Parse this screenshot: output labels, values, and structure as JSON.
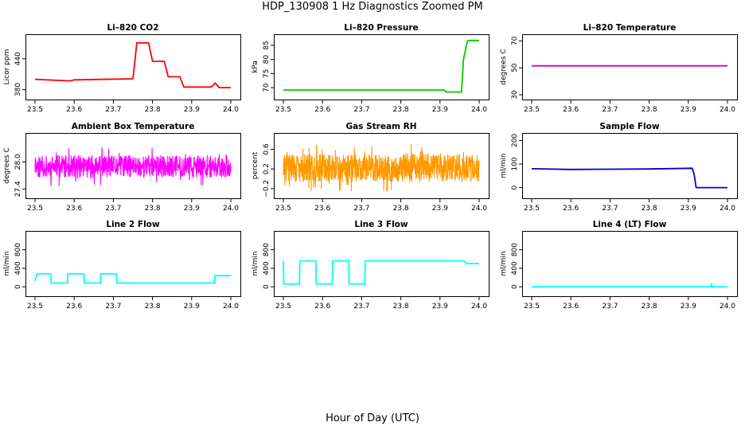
{
  "figure": {
    "title": "HDP_130908  1 Hz Diagnostics Zoomed PM",
    "xlabel": "Hour of Day (UTC)"
  },
  "chart_data": [
    {
      "type": "line",
      "title": "Li–820 CO2",
      "ylabel": "Licor ppm",
      "xlabel": "",
      "xlim": [
        23.5,
        24.0
      ],
      "ylim": [
        370,
        480
      ],
      "xticks": [
        "23.5",
        "23.6",
        "23.7",
        "23.8",
        "23.9",
        "24.0"
      ],
      "yticks": [
        "380",
        "440"
      ],
      "yticks_values": [
        380,
        440
      ],
      "series": [
        {
          "color": "#ff0000",
          "x": [
            23.5,
            23.59,
            23.6,
            23.75,
            23.76,
            23.79,
            23.8,
            23.83,
            23.84,
            23.87,
            23.88,
            23.95,
            23.96,
            23.97,
            24.0
          ],
          "y": [
            400,
            397,
            399,
            401,
            471,
            471,
            435,
            435,
            405,
            405,
            385,
            385,
            393,
            384,
            384
          ]
        }
      ]
    },
    {
      "type": "line",
      "title": "Li–820 Pressure",
      "ylabel": "kPa",
      "xlabel": "",
      "xlim": [
        23.5,
        24.0
      ],
      "ylim": [
        67.5,
        87.5
      ],
      "xticks": [
        "23.5",
        "23.6",
        "23.7",
        "23.8",
        "23.9",
        "24.0"
      ],
      "yticks": [
        "70",
        "75",
        "80",
        "85"
      ],
      "yticks_values": [
        70,
        75,
        80,
        85
      ],
      "series": [
        {
          "color": "#00cc00",
          "x": [
            23.5,
            23.91,
            23.915,
            23.955,
            23.96,
            23.97,
            23.975,
            24.0
          ],
          "y": [
            69.2,
            69.2,
            68.5,
            68.5,
            80,
            86.5,
            86.7,
            86.7
          ]
        }
      ]
    },
    {
      "type": "line",
      "title": "Li–820 Temperature",
      "ylabel": "degrees C",
      "xlabel": "",
      "xlim": [
        23.5,
        24.0
      ],
      "ylim": [
        30,
        72
      ],
      "xticks": [
        "23.5",
        "23.6",
        "23.7",
        "23.8",
        "23.9",
        "24.0"
      ],
      "yticks": [
        "30",
        "50",
        "70"
      ],
      "yticks_values": [
        30,
        50,
        70
      ],
      "series": [
        {
          "color": "#cc00cc",
          "x": [
            23.5,
            24.0
          ],
          "y": [
            51.5,
            51.5
          ]
        }
      ]
    },
    {
      "type": "line",
      "title": "Ambient Box Temperature",
      "ylabel": "degrees C",
      "xlabel": "",
      "xlim": [
        23.5,
        24.0
      ],
      "ylim": [
        27.3,
        28.55
      ],
      "xticks": [
        "23.5",
        "23.6",
        "23.7",
        "23.8",
        "23.9",
        "24.0"
      ],
      "yticks": [
        "27.4",
        "28.0"
      ],
      "yticks_values": [
        27.4,
        28.0
      ],
      "series": [
        {
          "color": "#ff00ff",
          "noise": {
            "base": 27.9,
            "amp": 0.24,
            "min": 27.35,
            "max": 28.45,
            "n": 700,
            "seed": 11
          }
        }
      ]
    },
    {
      "type": "line",
      "title": "Gas Stream RH",
      "ylabel": "percent",
      "xlabel": "",
      "xlim": [
        23.5,
        24.0
      ],
      "ylim": [
        -0.3,
        0.85
      ],
      "xticks": [
        "23.5",
        "23.6",
        "23.7",
        "23.8",
        "23.9",
        "24.0"
      ],
      "yticks": [
        "−0.2",
        "0.2",
        "0.6"
      ],
      "yticks_values": [
        -0.2,
        0.2,
        0.6
      ],
      "series": [
        {
          "color": "#ff9900",
          "noise": {
            "base": 0.22,
            "amp": 0.28,
            "min": -0.25,
            "max": 0.7,
            "n": 900,
            "seed": 29
          }
        }
      ]
    },
    {
      "type": "line",
      "title": "Sample Flow",
      "ylabel": "ml/min",
      "xlabel": "",
      "xlim": [
        23.5,
        24.0
      ],
      "ylim": [
        -25,
        215
      ],
      "xticks": [
        "23.5",
        "23.6",
        "23.7",
        "23.8",
        "23.9",
        "24.0"
      ],
      "yticks": [
        "0",
        "100",
        "200"
      ],
      "yticks_values": [
        0,
        100,
        200
      ],
      "series": [
        {
          "color": "#0000cc",
          "x": [
            23.5,
            23.6,
            23.7,
            23.8,
            23.91,
            23.915,
            23.92,
            24.0
          ],
          "y": [
            80,
            77,
            78,
            79,
            82,
            55,
            0,
            0
          ]
        }
      ]
    },
    {
      "type": "line",
      "title": "Line 2 Flow",
      "ylabel": "ml/min",
      "xlabel": "",
      "xlim": [
        23.5,
        24.0
      ],
      "ylim": [
        -100,
        1120
      ],
      "xticks": [
        "23.5",
        "23.6",
        "23.7",
        "23.8",
        "23.9",
        "24.0"
      ],
      "yticks": [
        "0",
        "400",
        "800"
      ],
      "yticks_values": [
        0,
        400,
        800
      ],
      "series": [
        {
          "color": "#00ffff",
          "x": [
            23.5,
            23.505,
            23.54,
            23.541,
            23.583,
            23.584,
            23.625,
            23.626,
            23.667,
            23.668,
            23.708,
            23.709,
            23.958,
            23.959,
            24.0
          ],
          "y": [
            120,
            280,
            280,
            80,
            80,
            280,
            280,
            80,
            80,
            280,
            280,
            80,
            80,
            240,
            240
          ]
        }
      ]
    },
    {
      "type": "line",
      "title": "Line 3 Flow",
      "ylabel": "ml/min",
      "xlabel": "",
      "xlim": [
        23.5,
        24.0
      ],
      "ylim": [
        -100,
        1120
      ],
      "xticks": [
        "23.5",
        "23.6",
        "23.7",
        "23.8",
        "23.9",
        "24.0"
      ],
      "yticks": [
        "0",
        "400",
        "800"
      ],
      "yticks_values": [
        0,
        400,
        800
      ],
      "series": [
        {
          "color": "#00ffff",
          "x": [
            23.5,
            23.501,
            23.541,
            23.542,
            23.583,
            23.584,
            23.625,
            23.626,
            23.667,
            23.668,
            23.708,
            23.709,
            23.96,
            23.97,
            24.0
          ],
          "y": [
            560,
            60,
            60,
            560,
            560,
            60,
            60,
            560,
            560,
            60,
            60,
            560,
            560,
            500,
            500
          ]
        }
      ]
    },
    {
      "type": "line",
      "title": "Line 4 (LT) Flow",
      "ylabel": "ml/min",
      "xlabel": "",
      "xlim": [
        23.5,
        24.0
      ],
      "ylim": [
        -100,
        1120
      ],
      "xticks": [
        "23.5",
        "23.6",
        "23.7",
        "23.8",
        "23.9",
        "24.0"
      ],
      "yticks": [
        "0",
        "400",
        "800"
      ],
      "yticks_values": [
        0,
        400,
        800
      ],
      "series": [
        {
          "color": "#00ffff",
          "x": [
            23.5,
            23.958,
            23.959,
            23.96,
            23.961,
            24.0
          ],
          "y": [
            0,
            0,
            60,
            60,
            0,
            0
          ]
        }
      ]
    }
  ]
}
